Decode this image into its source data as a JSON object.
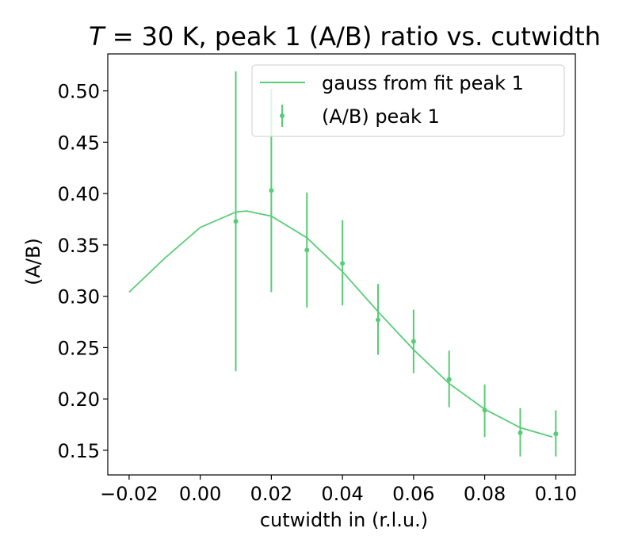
{
  "chart_data": {
    "type": "scatter",
    "title_prefix": "T",
    "title_rest": " = 30 K, peak 1 (A/B) ratio vs. cutwidth",
    "xlabel": "cutwidth in (r.l.u.)",
    "ylabel": "(A/B)",
    "xlim": [
      -0.026,
      0.1055
    ],
    "ylim": [
      0.126,
      0.536
    ],
    "xticks": [
      -0.02,
      0.0,
      0.02,
      0.04,
      0.06,
      0.08,
      0.1
    ],
    "xtick_labels": [
      "−0.02",
      "0.00",
      "0.02",
      "0.04",
      "0.06",
      "0.08",
      "0.10"
    ],
    "yticks": [
      0.15,
      0.2,
      0.25,
      0.3,
      0.35,
      0.4,
      0.45,
      0.5
    ],
    "ytick_labels": [
      "0.15",
      "0.20",
      "0.25",
      "0.30",
      "0.35",
      "0.40",
      "0.45",
      "0.50"
    ],
    "grid": false,
    "legend_position": "top-right",
    "color": "#57cc76",
    "series": [
      {
        "name": "gauss from fit peak 1",
        "kind": "line",
        "x": [
          -0.02,
          -0.01,
          0.0,
          0.01,
          0.013,
          0.02,
          0.03,
          0.04,
          0.05,
          0.06,
          0.07,
          0.08,
          0.09,
          0.099
        ],
        "y": [
          0.304,
          0.337,
          0.367,
          0.382,
          0.383,
          0.378,
          0.357,
          0.324,
          0.285,
          0.248,
          0.215,
          0.19,
          0.172,
          0.163
        ]
      },
      {
        "name": "(A/B) peak 1",
        "kind": "errorbar",
        "x": [
          0.01,
          0.02,
          0.03,
          0.04,
          0.05,
          0.06,
          0.07,
          0.08,
          0.09,
          0.1
        ],
        "y": [
          0.373,
          0.403,
          0.345,
          0.332,
          0.277,
          0.256,
          0.219,
          0.189,
          0.167,
          0.166
        ],
        "yerr_low": [
          0.227,
          0.304,
          0.289,
          0.291,
          0.243,
          0.225,
          0.192,
          0.163,
          0.144,
          0.144
        ],
        "yerr_high": [
          0.519,
          0.502,
          0.401,
          0.374,
          0.312,
          0.287,
          0.247,
          0.214,
          0.191,
          0.189
        ]
      }
    ]
  }
}
